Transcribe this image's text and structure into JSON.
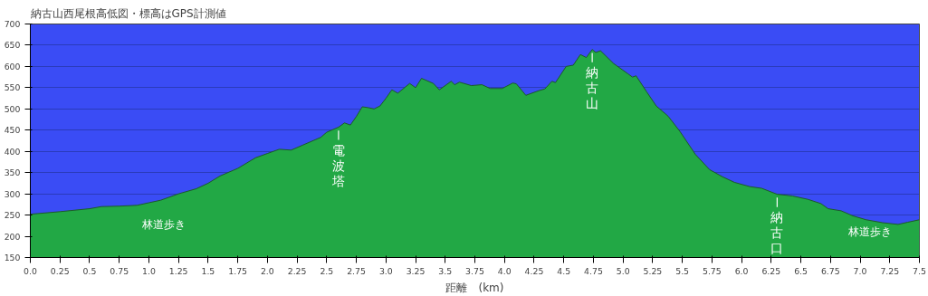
{
  "chart_data": {
    "type": "area",
    "title": "納古山西尾根高低図・標高はGPS計測値",
    "xlabel": "距離　(km)",
    "x": [
      0,
      0.25,
      0.5,
      0.6,
      0.75,
      0.9,
      1.0,
      1.1,
      1.25,
      1.4,
      1.5,
      1.6,
      1.75,
      1.9,
      2.0,
      2.1,
      2.2,
      2.3,
      2.45,
      2.5,
      2.6,
      2.65,
      2.7,
      2.75,
      2.8,
      2.85,
      2.9,
      2.95,
      3.0,
      3.05,
      3.1,
      3.2,
      3.25,
      3.3,
      3.4,
      3.45,
      3.55,
      3.58,
      3.62,
      3.72,
      3.81,
      3.88,
      3.98,
      4.07,
      4.1,
      4.18,
      4.29,
      4.34,
      4.4,
      4.43,
      4.52,
      4.58,
      4.64,
      4.69,
      4.74,
      4.77,
      4.81,
      4.92,
      5.04,
      5.08,
      5.11,
      5.2,
      5.28,
      5.38,
      5.48,
      5.61,
      5.73,
      5.84,
      5.94,
      6.07,
      6.17,
      6.3,
      6.43,
      6.56,
      6.67,
      6.73,
      6.84,
      6.94,
      7.05,
      7.19,
      7.32,
      7.4,
      7.5
    ],
    "series": [
      {
        "color": "#22a845",
        "values": [
          252,
          258,
          265,
          270,
          271,
          273,
          279,
          285,
          300,
          312,
          325,
          342,
          360,
          385,
          395,
          405,
          403,
          415,
          433,
          445,
          457,
          467,
          462,
          482,
          505,
          503,
          500,
          507,
          525,
          545,
          537,
          560,
          550,
          572,
          560,
          545,
          565,
          557,
          563,
          555,
          557,
          548,
          548,
          561,
          559,
          532,
          543,
          547,
          565,
          562,
          600,
          603,
          628,
          621,
          640,
          633,
          637,
          607,
          583,
          575,
          578,
          540,
          507,
          483,
          447,
          393,
          357,
          340,
          327,
          317,
          313,
          299,
          295,
          287,
          277,
          265,
          260,
          248,
          239,
          232,
          228,
          233,
          239
        ]
      }
    ],
    "xlim": [
      0,
      7.5
    ],
    "ylim": [
      150,
      700
    ],
    "xticks": [
      {
        "value": 0,
        "label": "0.0"
      },
      0.25,
      0.5,
      0.75,
      {
        "value": 1,
        "label": "1.0"
      },
      1.25,
      1.5,
      1.75,
      {
        "value": 2,
        "label": "2.0"
      },
      2.25,
      2.5,
      2.75,
      {
        "value": 3,
        "label": "3.0"
      },
      3.25,
      3.5,
      3.75,
      {
        "value": 4,
        "label": "4.0"
      },
      4.25,
      4.5,
      4.75,
      {
        "value": 5,
        "label": "5.0"
      },
      5.25,
      5.5,
      5.75,
      {
        "value": 6,
        "label": "6.0"
      },
      6.25,
      6.5,
      6.75,
      {
        "value": 7,
        "label": "7.0"
      },
      7.25,
      7.5
    ],
    "yticks": [
      150,
      200,
      250,
      300,
      350,
      400,
      450,
      500,
      550,
      600,
      650,
      700
    ],
    "grid": "y",
    "annotations": [
      "林道歩き",
      {
        "text": "電波塔",
        "x": 2.6,
        "y": 457
      },
      {
        "text": "納古山",
        "x": 4.74,
        "y": 640
      },
      {
        "text": "納古口",
        "x": 6.3,
        "y": 299
      },
      "林道歩き"
    ]
  }
}
